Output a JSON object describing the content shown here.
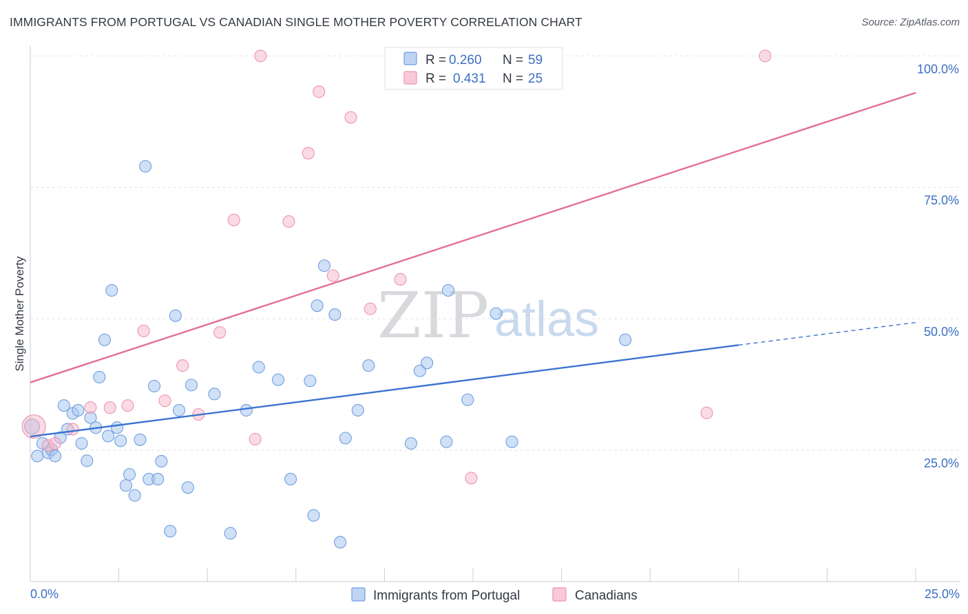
{
  "header": {
    "title": "IMMIGRANTS FROM PORTUGAL VS CANADIAN SINGLE MOTHER POVERTY CORRELATION CHART",
    "source": "Source: ZipAtlas.com"
  },
  "watermark": {
    "zip": "ZIP",
    "atlas": "atlas"
  },
  "legend": {
    "rows": [
      {
        "r_label": "R = ",
        "r_value": "0.260",
        "n_label": "N = ",
        "n_value": "59",
        "color": "#a9c6ef"
      },
      {
        "r_label": "R = ",
        "r_value": "0.431",
        "n_label": "N = ",
        "n_value": "25",
        "color": "#f6b8ca"
      }
    ]
  },
  "bottom_legend": {
    "items": [
      {
        "label": "Immigrants from Portugal",
        "color": "#a9c6ef"
      },
      {
        "label": "Canadians",
        "color": "#f6b8ca"
      }
    ]
  },
  "chart_data": {
    "type": "scatter",
    "title": "IMMIGRANTS FROM PORTUGAL VS CANADIAN SINGLE MOTHER POVERTY CORRELATION CHART",
    "xlabel": "",
    "ylabel": "Single Mother Poverty",
    "xlim": [
      0,
      25
    ],
    "ylim": [
      0,
      102
    ],
    "x_tick_labels": [
      "0.0%",
      "25.0%"
    ],
    "y_ticks": [
      25,
      50,
      75,
      100
    ],
    "y_tick_labels": [
      "25.0%",
      "50.0%",
      "75.0%",
      "100.0%"
    ],
    "grid": "horizontal dashed",
    "legend_position": "top-center",
    "colors": {
      "portugal": "#3b73d1",
      "canadians": "#e26d98",
      "portugal_fill": "#a9c6ef",
      "canadians_fill": "#f6b8ca"
    },
    "series": [
      {
        "name": "Immigrants from Portugal",
        "r": 0.26,
        "n": 59,
        "trend": {
          "x": [
            0,
            20
          ],
          "y": [
            27.6,
            45.0
          ],
          "dashed_to": [
            25,
            49.3
          ]
        },
        "points": [
          [
            0.05,
            29.5
          ],
          [
            0.2,
            23.9
          ],
          [
            0.35,
            26.3
          ],
          [
            0.5,
            24.5
          ],
          [
            0.6,
            25.1
          ],
          [
            0.7,
            23.9
          ],
          [
            0.85,
            27.4
          ],
          [
            0.95,
            33.5
          ],
          [
            1.05,
            29.0
          ],
          [
            1.2,
            32.0
          ],
          [
            1.35,
            32.6
          ],
          [
            1.45,
            26.3
          ],
          [
            1.6,
            23.0
          ],
          [
            1.7,
            31.2
          ],
          [
            1.85,
            29.3
          ],
          [
            1.95,
            38.9
          ],
          [
            2.1,
            46.0
          ],
          [
            2.2,
            27.7
          ],
          [
            2.3,
            55.4
          ],
          [
            2.45,
            29.3
          ],
          [
            2.55,
            26.8
          ],
          [
            2.7,
            18.3
          ],
          [
            2.8,
            20.4
          ],
          [
            2.95,
            16.4
          ],
          [
            3.1,
            27.0
          ],
          [
            3.25,
            79.0
          ],
          [
            3.35,
            19.5
          ],
          [
            3.5,
            37.2
          ],
          [
            3.6,
            19.5
          ],
          [
            3.7,
            22.9
          ],
          [
            3.95,
            9.6
          ],
          [
            4.1,
            50.6
          ],
          [
            4.2,
            32.6
          ],
          [
            4.45,
            17.9
          ],
          [
            4.55,
            37.4
          ],
          [
            5.2,
            35.7
          ],
          [
            5.65,
            9.2
          ],
          [
            6.1,
            32.6
          ],
          [
            6.45,
            40.8
          ],
          [
            7.0,
            38.4
          ],
          [
            7.35,
            19.5
          ],
          [
            7.9,
            38.2
          ],
          [
            8.0,
            12.6
          ],
          [
            8.1,
            52.5
          ],
          [
            8.3,
            60.1
          ],
          [
            8.6,
            50.8
          ],
          [
            8.75,
            7.5
          ],
          [
            8.9,
            27.3
          ],
          [
            9.25,
            32.6
          ],
          [
            9.55,
            41.1
          ],
          [
            10.75,
            26.3
          ],
          [
            11.0,
            40.1
          ],
          [
            11.2,
            41.6
          ],
          [
            11.75,
            26.6
          ],
          [
            11.8,
            55.4
          ],
          [
            12.35,
            34.6
          ],
          [
            13.15,
            51.0
          ],
          [
            13.6,
            26.6
          ],
          [
            16.8,
            46.0
          ]
        ]
      },
      {
        "name": "Canadians",
        "r": 0.431,
        "n": 25,
        "trend": {
          "x": [
            0,
            25
          ],
          "y": [
            37.9,
            93.0
          ]
        },
        "points": [
          [
            0.1,
            29.5
          ],
          [
            0.5,
            25.9
          ],
          [
            0.7,
            26.3
          ],
          [
            1.2,
            29.0
          ],
          [
            1.7,
            33.1
          ],
          [
            2.25,
            33.1
          ],
          [
            2.75,
            33.5
          ],
          [
            3.2,
            47.7
          ],
          [
            3.8,
            34.4
          ],
          [
            4.3,
            41.1
          ],
          [
            4.75,
            31.8
          ],
          [
            5.35,
            47.4
          ],
          [
            5.75,
            68.8
          ],
          [
            6.35,
            27.1
          ],
          [
            6.5,
            100.0
          ],
          [
            7.3,
            68.5
          ],
          [
            7.85,
            81.5
          ],
          [
            8.15,
            93.2
          ],
          [
            8.55,
            58.2
          ],
          [
            9.05,
            88.3
          ],
          [
            9.6,
            51.9
          ],
          [
            10.45,
            57.5
          ],
          [
            12.45,
            19.7
          ],
          [
            19.1,
            32.1
          ],
          [
            20.75,
            100.0
          ]
        ]
      }
    ]
  }
}
